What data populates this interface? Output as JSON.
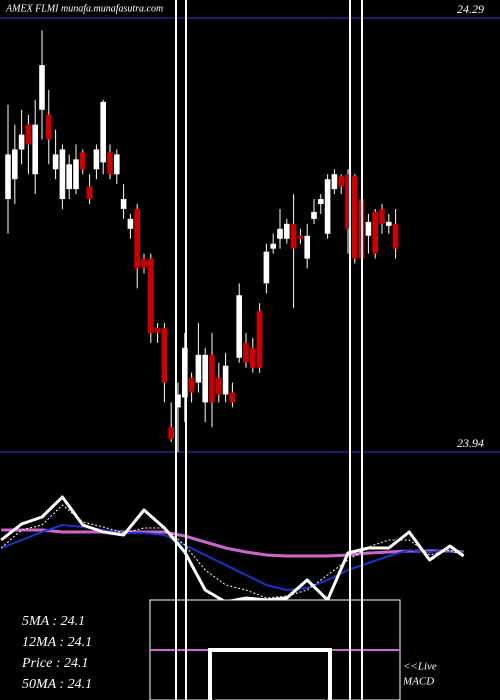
{
  "chart_data": [
    {
      "type": "candlestick",
      "title": "AMEX  FLMI munafa.munafasutra.com",
      "ylim": [
        23.94,
        24.29
      ],
      "yticks": [
        24.29,
        23.94
      ],
      "up_color": "#ffffff",
      "down_color": "#cc0000",
      "grid_color": "#1a1a6e",
      "open": [
        24.144,
        24.16,
        24.184,
        24.204,
        24.164,
        24.216,
        24.212,
        24.168,
        24.144,
        24.152,
        24.152,
        24.1816,
        24.1544,
        24.168,
        24.1736,
        24.1816,
        24.164,
        24.136,
        24.12,
        24.136,
        24.096,
        24.096,
        24.04,
        24.04,
        23.96,
        23.976,
        23.984,
        24.0,
        23.996,
        23.98,
        24.0184,
        24.0,
        23.9864,
        23.988,
        24.016,
        24.028,
        24.024,
        24.0536,
        24.076,
        24.104,
        24.112,
        24.112,
        24.124,
        24.1144,
        24.096,
        24.128,
        24.14,
        24.116,
        24.152,
        24.1624,
        24.164,
        24.1624,
        24.144,
        24.1144,
        24.1336,
        24.136,
        24.1224,
        24.124
      ],
      "high": [
        24.22,
        24.204,
        24.216,
        24.212,
        24.224,
        24.28,
        24.232,
        24.2,
        24.188,
        24.18,
        24.188,
        24.184,
        24.164,
        24.188,
        24.224,
        24.188,
        24.184,
        24.156,
        24.132,
        24.14,
        24.1,
        24.1,
        24.044,
        24.044,
        23.98,
        23.996,
        24.036,
        24.004,
        24.044,
        24.024,
        24.036,
        24.012,
        24.02,
        23.996,
        24.076,
        24.036,
        24.032,
        24.06,
        24.108,
        24.116,
        24.136,
        24.128,
        24.148,
        24.12,
        24.124,
        24.144,
        24.148,
        24.164,
        24.168,
        24.164,
        24.168,
        24.164,
        24.148,
        24.132,
        24.136,
        24.14,
        24.132,
        24.136
      ],
      "low": [
        24.116,
        24.14,
        24.172,
        24.164,
        24.148,
        24.192,
        24.172,
        24.16,
        24.136,
        24.144,
        24.148,
        24.164,
        24.14,
        24.16,
        24.164,
        24.16,
        24.156,
        24.128,
        24.112,
        24.072,
        24.084,
        24.028,
        24.028,
        23.98,
        23.948,
        23.94,
        23.964,
        23.98,
        23.988,
        23.964,
        23.96,
        23.98,
        23.98,
        23.976,
        24.012,
        24.008,
        24.004,
        24.004,
        24.068,
        24.1,
        24.104,
        24.108,
        24.056,
        24.108,
        24.088,
        24.124,
        24.132,
        24.112,
        24.148,
        24.148,
        24.1,
        24.092,
        24.092,
        24.1,
        24.096,
        24.116,
        24.116,
        24.096
      ],
      "close": [
        24.18,
        24.184,
        24.196,
        24.188,
        24.204,
        24.252,
        24.192,
        24.18,
        24.184,
        24.172,
        24.176,
        24.168,
        24.144,
        24.184,
        24.2224,
        24.164,
        24.18,
        24.144,
        24.128,
        24.088,
        24.088,
        24.036,
        24.036,
        23.996,
        23.9504,
        23.9864,
        24.024,
        23.988,
        24.0184,
        24.0184,
        23.98,
        23.9864,
        24.0096,
        23.98,
        24.0664,
        24.012,
        24.008,
        24.008,
        24.1016,
        24.108,
        24.12,
        24.124,
        24.104,
        24.112,
        24.1144,
        24.1336,
        24.144,
        24.16,
        24.164,
        24.1544,
        24.12,
        24.096,
        24.096,
        24.1256,
        24.1,
        24.124,
        24.1256,
        24.104
      ],
      "ma_labels": [
        "5MA : 24.1",
        "12MA : 24.1",
        "Price   : 24.1",
        "50MA : 24.1"
      ]
    },
    {
      "type": "line",
      "ylim": [
        0,
        100
      ],
      "xlim": [
        -1,
        67
      ],
      "x": [
        -1,
        2,
        5,
        8,
        11,
        14,
        17,
        20,
        23,
        26,
        29,
        32,
        35,
        38,
        41,
        44,
        47,
        50,
        53,
        56,
        59,
        62,
        65,
        67
      ],
      "series": [
        {
          "color": "#cc66cc",
          "width": 3,
          "dash": false,
          "values": [
            66.7,
            66.7,
            66.7,
            65,
            65,
            65,
            65,
            65,
            65,
            61.7,
            56.7,
            51.7,
            48.3,
            45.8,
            45,
            45,
            45,
            45.8,
            47.5,
            48.3,
            49.2,
            49.2,
            49.2,
            48.3
          ]
        },
        {
          "color": "#1a33cc",
          "width": 2,
          "dash": false,
          "values": [
            51.7,
            58.3,
            65,
            70.8,
            69.2,
            66.7,
            64.2,
            64.2,
            62.5,
            54.2,
            45.8,
            37.5,
            29.2,
            20.8,
            16.7,
            18.3,
            25,
            33.3,
            39.2,
            45,
            50,
            48.3,
            50,
            47.5
          ]
        },
        {
          "color": "#ffffff",
          "width": 1,
          "dash": true,
          "values": [
            51.7,
            66.7,
            70.8,
            87.5,
            73.3,
            69.2,
            64.2,
            68.3,
            68.3,
            54.2,
            33.3,
            20.8,
            16.7,
            10,
            11.7,
            16.7,
            29.2,
            41.7,
            52.5,
            58.3,
            58.3,
            45.8,
            50,
            45
          ]
        },
        {
          "color": "#ffffff",
          "width": 3,
          "dash": false,
          "values": [
            58.3,
            71.7,
            77.5,
            94.2,
            70.8,
            65,
            62.5,
            83.3,
            68.3,
            48.3,
            16.7,
            6.7,
            10,
            8.3,
            10,
            25,
            8.3,
            47.5,
            51.7,
            51.7,
            65,
            41.7,
            53.3,
            45
          ]
        }
      ],
      "annotations": [
        "<<Live",
        "MACD"
      ]
    }
  ]
}
